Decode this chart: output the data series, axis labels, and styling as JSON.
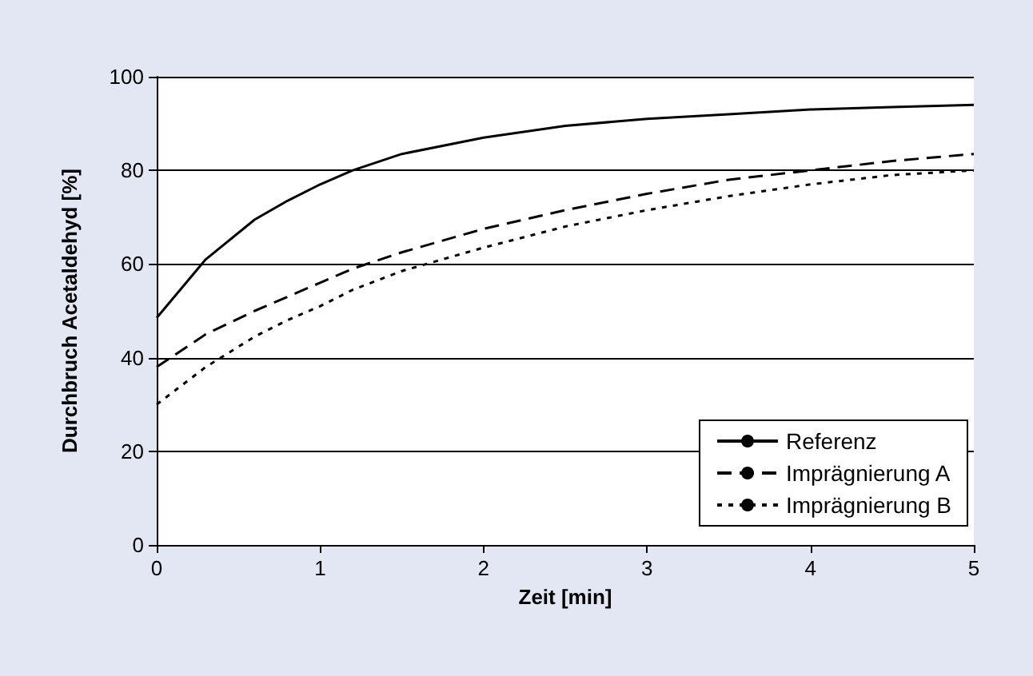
{
  "chart_data": {
    "type": "line",
    "xlabel": "Zeit [min]",
    "ylabel": "Durchbruch Acetaldehyd [%]",
    "x": [
      0,
      0.3,
      0.6,
      0.8,
      1,
      1.2,
      1.5,
      2,
      2.5,
      3,
      3.5,
      4,
      4.5,
      5
    ],
    "series": [
      {
        "name": "Referenz",
        "color": "#000000",
        "line_style": "solid",
        "values": [
          48.5,
          61,
          69.5,
          73.5,
          77,
          80,
          83.5,
          87,
          89.5,
          91,
          92,
          93,
          93.5,
          94
        ]
      },
      {
        "name": "Imprägnierung A",
        "color": "#000000",
        "line_style": "dashed",
        "values": [
          38,
          45,
          50,
          53,
          56,
          59,
          62.5,
          67.5,
          71.5,
          75,
          78,
          80,
          82,
          83.5
        ]
      },
      {
        "name": "Imprägnierung B",
        "color": "#000000",
        "line_style": "dotted",
        "values": [
          30,
          38,
          44.5,
          48,
          51,
          54.5,
          58.5,
          63.5,
          68,
          71.5,
          74.5,
          77,
          79,
          80
        ]
      }
    ],
    "xlim": [
      0,
      5
    ],
    "xticks": [
      0,
      1,
      2,
      3,
      4,
      5
    ],
    "ylim": [
      0,
      100
    ],
    "yticks": [
      0,
      20,
      40,
      60,
      80,
      100
    ],
    "grid": "y",
    "legend": "bottom right",
    "marker": "none"
  }
}
